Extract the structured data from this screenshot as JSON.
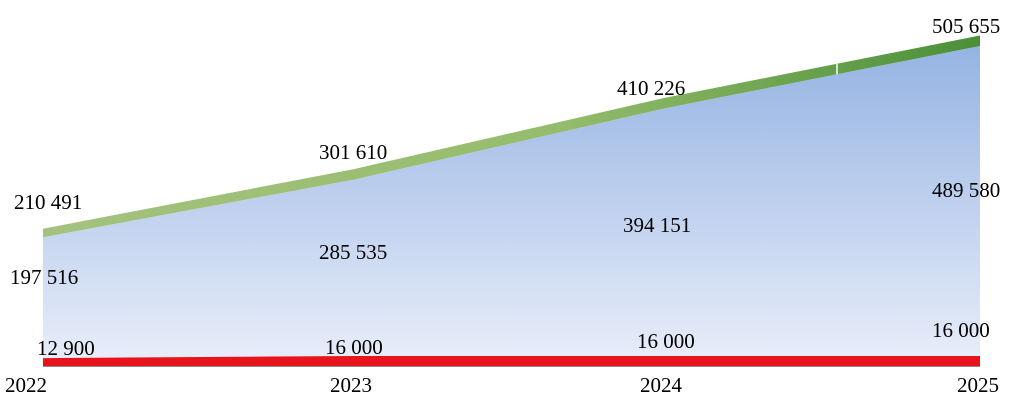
{
  "chart_data": {
    "type": "area",
    "stacked": true,
    "grid": false,
    "legend": "none",
    "title": "",
    "xlabel": "",
    "ylabel": "",
    "ylim": [
      0,
      520000
    ],
    "categories": [
      "2022",
      "2023",
      "2024",
      "2025"
    ],
    "series": [
      {
        "values": [
          12900,
          16000,
          16000,
          16000
        ],
        "color": "#e8141b"
      },
      {
        "values": [
          184616,
          269535,
          378151,
          473580
        ],
        "color": "#b7c9ea"
      },
      {
        "values": [
          12975,
          16075,
          16075,
          16075
        ],
        "color": "#7fae5a"
      }
    ],
    "data_labels": {
      "red": [
        "12 900",
        "16 000",
        "16 000",
        "16 000"
      ],
      "blue": [
        "197 516",
        "285 535",
        "394 151",
        "489 580"
      ],
      "green": [
        "210 491",
        "301 610",
        "410 226",
        "505 655"
      ]
    }
  }
}
